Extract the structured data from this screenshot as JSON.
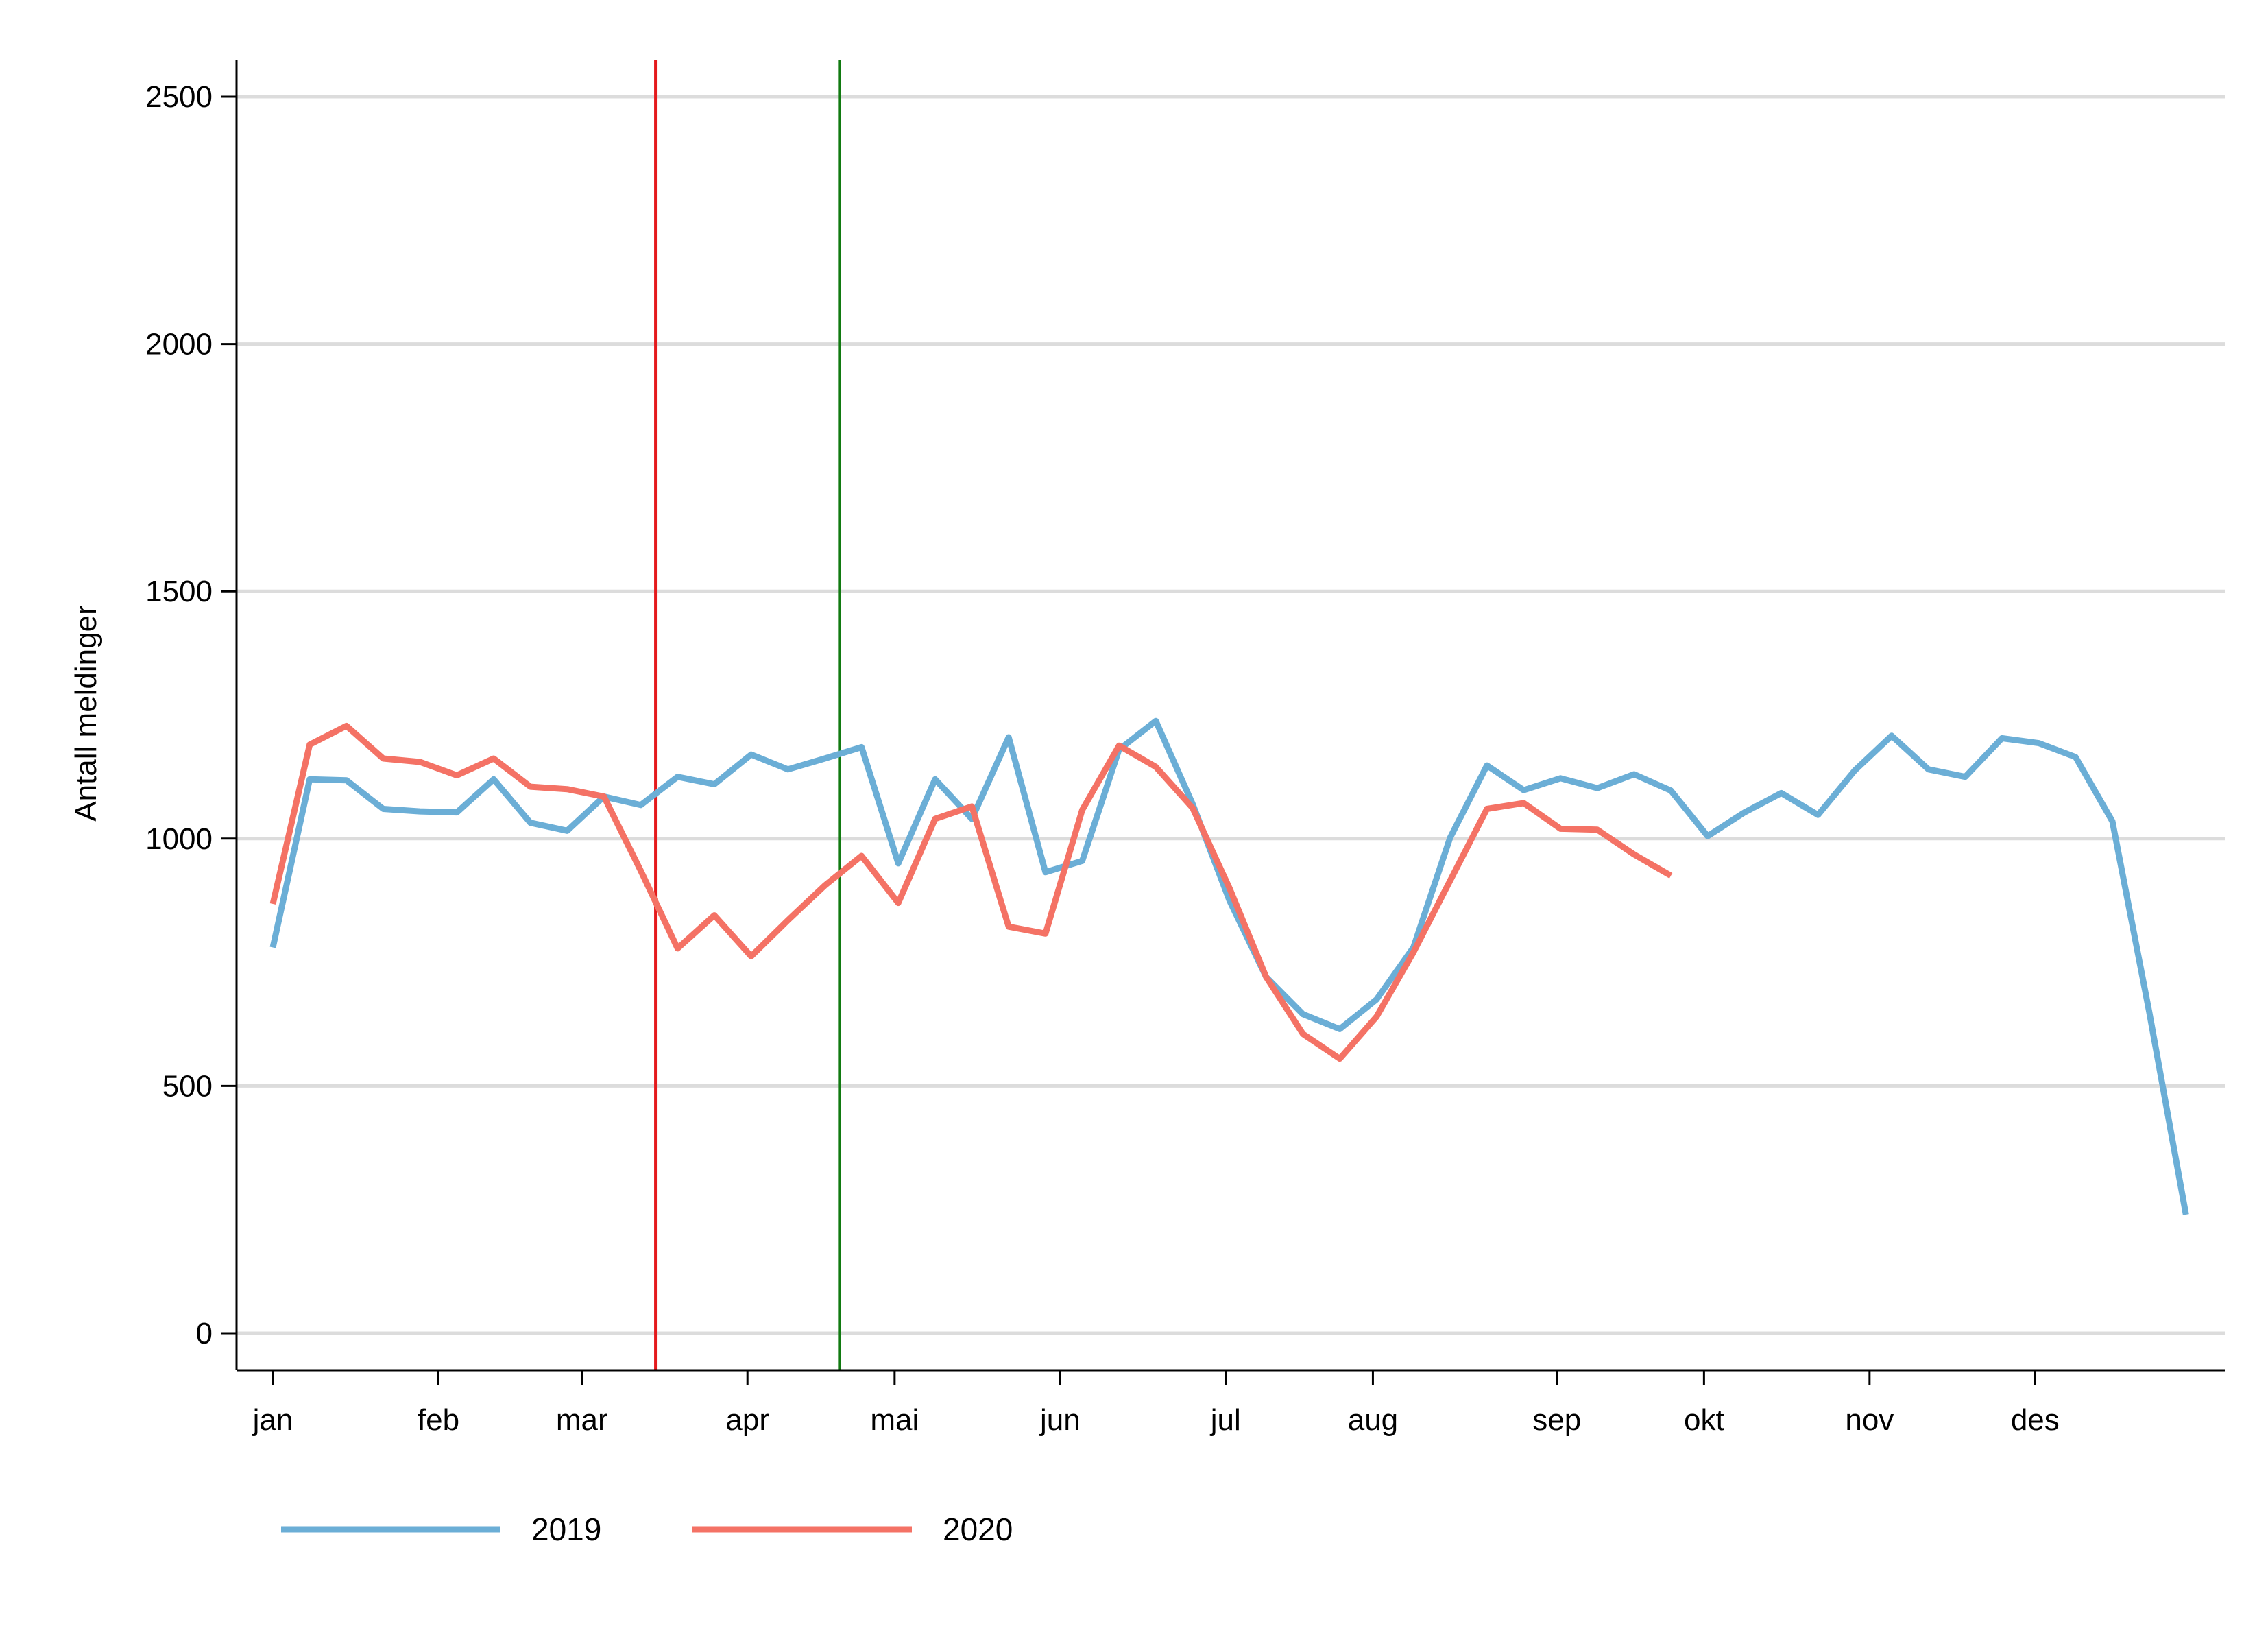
{
  "chart_data": {
    "type": "line",
    "ylabel": "Antall meldinger",
    "xlabel": "",
    "ylim": [
      -70,
      2575
    ],
    "yticks": [
      0,
      500,
      1000,
      1500,
      2000,
      2500
    ],
    "xlim": [
      0.6,
      53.5
    ],
    "grid": "horizontal",
    "legend_position": "bottom-left",
    "months": [
      {
        "label": "jan",
        "week": 1
      },
      {
        "label": "feb",
        "week": 5.5
      },
      {
        "label": "mar",
        "week": 9.4
      },
      {
        "label": "apr",
        "week": 13.9
      },
      {
        "label": "mai",
        "week": 17.9
      },
      {
        "label": "jun",
        "week": 22.4
      },
      {
        "label": "jul",
        "week": 26.9
      },
      {
        "label": "aug",
        "week": 30.9
      },
      {
        "label": "sep",
        "week": 35.9
      },
      {
        "label": "okt",
        "week": 39.9
      },
      {
        "label": "nov",
        "week": 44.4
      },
      {
        "label": "des",
        "week": 48.9
      }
    ],
    "vlines": [
      {
        "week": 11.4,
        "color": "#e41a1c"
      },
      {
        "week": 16.4,
        "color": "#117a11"
      }
    ],
    "series": [
      {
        "name": "2019",
        "color": "#6baed6",
        "x": [
          1,
          2,
          3,
          4,
          5,
          6,
          7,
          8,
          9,
          10,
          11,
          12,
          13,
          14,
          15,
          16,
          17,
          18,
          19,
          20,
          21,
          22,
          23,
          24,
          25,
          26,
          27,
          28,
          29,
          30,
          31,
          32,
          33,
          34,
          35,
          36,
          37,
          38,
          39,
          40,
          41,
          42,
          43,
          44,
          45,
          46,
          47,
          48,
          49,
          50,
          51,
          52,
          53
        ],
        "values": [
          780,
          1120,
          1118,
          1060,
          1055,
          1053,
          1120,
          1032,
          1016,
          1085,
          1068,
          1125,
          1110,
          1170,
          1140,
          1162,
          1185,
          950,
          1120,
          1040,
          1205,
          932,
          955,
          1180,
          1238,
          1070,
          875,
          720,
          645,
          615,
          675,
          780,
          1002,
          1148,
          1098,
          1122,
          1102,
          1130,
          1097,
          1005,
          1053,
          1092,
          1048,
          1138,
          1208,
          1140,
          1125,
          1203,
          1193,
          1165,
          1035,
          650,
          240
        ]
      },
      {
        "name": "2020",
        "color": "#f47265",
        "x": [
          1,
          2,
          3,
          4,
          5,
          6,
          7,
          8,
          9,
          10,
          11,
          12,
          13,
          14,
          15,
          16,
          17,
          18,
          19,
          20,
          21,
          22,
          23,
          24,
          25,
          26,
          27,
          28,
          29,
          30,
          31,
          32,
          33,
          34,
          35,
          36,
          37,
          38,
          39
        ],
        "values": [
          868,
          1190,
          1228,
          1162,
          1155,
          1128,
          1162,
          1105,
          1100,
          1085,
          935,
          778,
          845,
          762,
          835,
          905,
          965,
          870,
          1040,
          1065,
          822,
          808,
          1058,
          1188,
          1145,
          1062,
          900,
          720,
          605,
          555,
          640,
          770,
          915,
          1060,
          1072,
          1020,
          1018,
          968,
          925
        ]
      }
    ]
  }
}
